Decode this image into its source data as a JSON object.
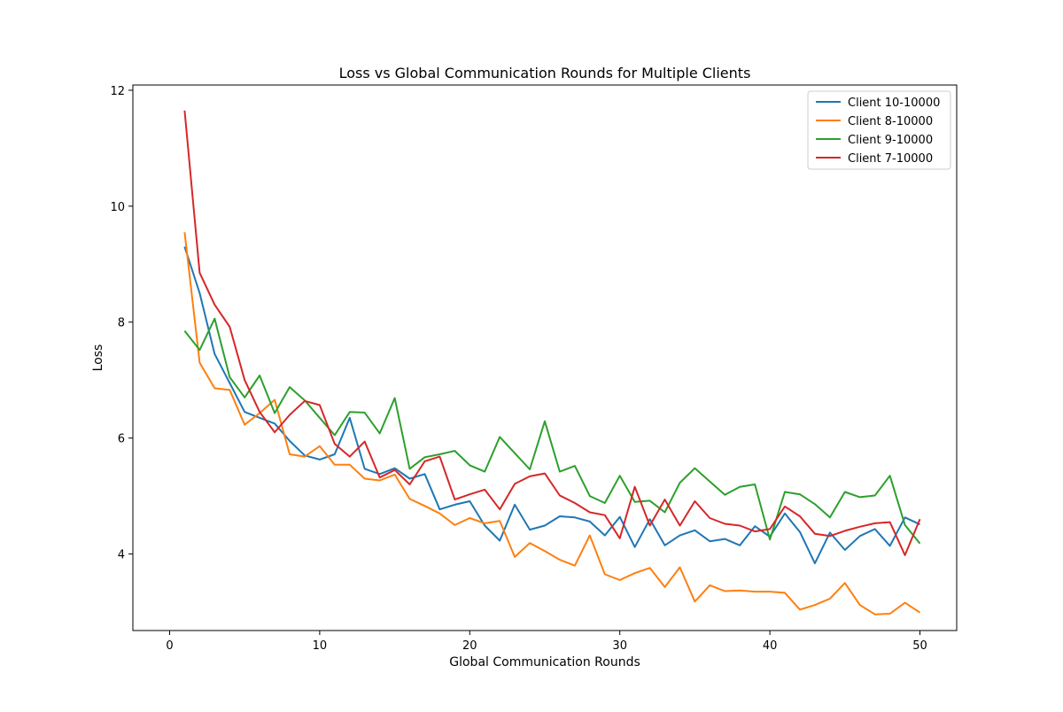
{
  "chart_data": {
    "type": "line",
    "title": "Loss vs Global Communication Rounds for Multiple Clients",
    "xlabel": "Global Communication Rounds",
    "ylabel": "Loss",
    "xlim": [
      -2.45,
      52.45
    ],
    "ylim": [
      2.68,
      12.09
    ],
    "xticks": [
      0,
      10,
      20,
      30,
      40,
      50
    ],
    "yticks": [
      4,
      6,
      8,
      10,
      12
    ],
    "grid": false,
    "legend_position": "top-right",
    "x": [
      1,
      2,
      3,
      4,
      5,
      6,
      7,
      8,
      9,
      10,
      11,
      12,
      13,
      14,
      15,
      16,
      17,
      18,
      19,
      20,
      21,
      22,
      23,
      24,
      25,
      26,
      27,
      28,
      29,
      30,
      31,
      32,
      33,
      34,
      35,
      36,
      37,
      38,
      39,
      40,
      41,
      42,
      43,
      44,
      45,
      46,
      47,
      48,
      49,
      50
    ],
    "series": [
      {
        "name": "Client 10-10000",
        "color": "#1f77b4",
        "values": [
          9.3,
          8.5,
          7.45,
          6.95,
          6.45,
          6.35,
          6.25,
          5.95,
          5.7,
          5.63,
          5.72,
          6.35,
          5.47,
          5.38,
          5.48,
          5.3,
          5.38,
          4.77,
          4.85,
          4.91,
          4.49,
          4.23,
          4.85,
          4.42,
          4.49,
          4.65,
          4.63,
          4.56,
          4.32,
          4.64,
          4.12,
          4.6,
          4.15,
          4.32,
          4.41,
          4.22,
          4.26,
          4.15,
          4.48,
          4.3,
          4.7,
          4.38,
          3.84,
          4.37,
          4.07,
          4.31,
          4.43,
          4.14,
          4.63,
          4.51
        ]
      },
      {
        "name": "Client 8-10000",
        "color": "#ff7f0e",
        "values": [
          9.55,
          7.3,
          6.86,
          6.83,
          6.23,
          6.43,
          6.66,
          5.72,
          5.68,
          5.86,
          5.54,
          5.54,
          5.3,
          5.27,
          5.37,
          4.95,
          4.83,
          4.7,
          4.5,
          4.62,
          4.53,
          4.57,
          3.95,
          4.19,
          4.05,
          3.9,
          3.8,
          4.32,
          3.65,
          3.55,
          3.67,
          3.76,
          3.43,
          3.77,
          3.18,
          3.46,
          3.36,
          3.37,
          3.35,
          3.35,
          3.33,
          3.04,
          3.12,
          3.23,
          3.5,
          3.12,
          2.96,
          2.97,
          3.16,
          2.99
        ]
      },
      {
        "name": "Client 9-10000",
        "color": "#2ca02c",
        "values": [
          7.85,
          7.52,
          8.06,
          7.05,
          6.7,
          7.08,
          6.43,
          6.88,
          6.65,
          6.35,
          6.05,
          6.45,
          6.44,
          6.08,
          6.69,
          5.47,
          5.67,
          5.72,
          5.78,
          5.53,
          5.42,
          6.02,
          5.74,
          5.46,
          6.29,
          5.42,
          5.52,
          5.0,
          4.88,
          5.35,
          4.9,
          4.92,
          4.72,
          5.23,
          5.48,
          5.25,
          5.02,
          5.16,
          5.2,
          4.25,
          5.07,
          5.03,
          4.86,
          4.63,
          5.07,
          4.98,
          5.01,
          5.35,
          4.5,
          4.18
        ]
      },
      {
        "name": "Client 7-10000",
        "color": "#d62728",
        "values": [
          11.65,
          8.85,
          8.3,
          7.92,
          7.0,
          6.45,
          6.1,
          6.4,
          6.64,
          6.57,
          5.9,
          5.68,
          5.94,
          5.32,
          5.45,
          5.2,
          5.6,
          5.68,
          4.94,
          5.03,
          5.11,
          4.77,
          5.21,
          5.34,
          5.39,
          5.01,
          4.88,
          4.72,
          4.67,
          4.27,
          5.16,
          4.49,
          4.94,
          4.49,
          4.91,
          4.62,
          4.52,
          4.49,
          4.39,
          4.43,
          4.82,
          4.65,
          4.35,
          4.31,
          4.4,
          4.47,
          4.53,
          4.55,
          3.98,
          4.6
        ]
      }
    ]
  }
}
